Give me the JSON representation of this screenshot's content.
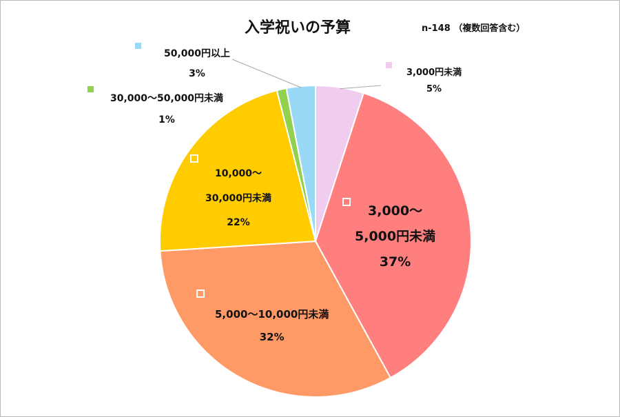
{
  "title": "入学祝いの予算",
  "sample_note": "n-148 （複数回答含む）",
  "chart_data": {
    "type": "pie",
    "title": "入学祝いの予算",
    "slices": [
      {
        "label": "3,000円未満",
        "value": 5,
        "value_text": "5%",
        "color": "#f0cdee"
      },
      {
        "label_line1": "3,000〜",
        "label_line2": "5,000円未満",
        "label": "3,000〜5,000円未満",
        "value": 37,
        "value_text": "37%",
        "color": "#ff7f7f"
      },
      {
        "label": "5,000〜10,000円未満",
        "value": 32,
        "value_text": "32%",
        "color": "#ff9966"
      },
      {
        "label_line1": "10,000〜",
        "label_line2": "30,000円未満",
        "label": "10,000〜30,000円未満",
        "value": 22,
        "value_text": "22%",
        "color": "#ffcc00"
      },
      {
        "label": "30,000〜50,000円未満",
        "value": 1,
        "value_text": "1%",
        "color": "#92d050"
      },
      {
        "label": "50,000円以上",
        "value": 3,
        "value_text": "3%",
        "color": "#99d9f5"
      }
    ]
  }
}
